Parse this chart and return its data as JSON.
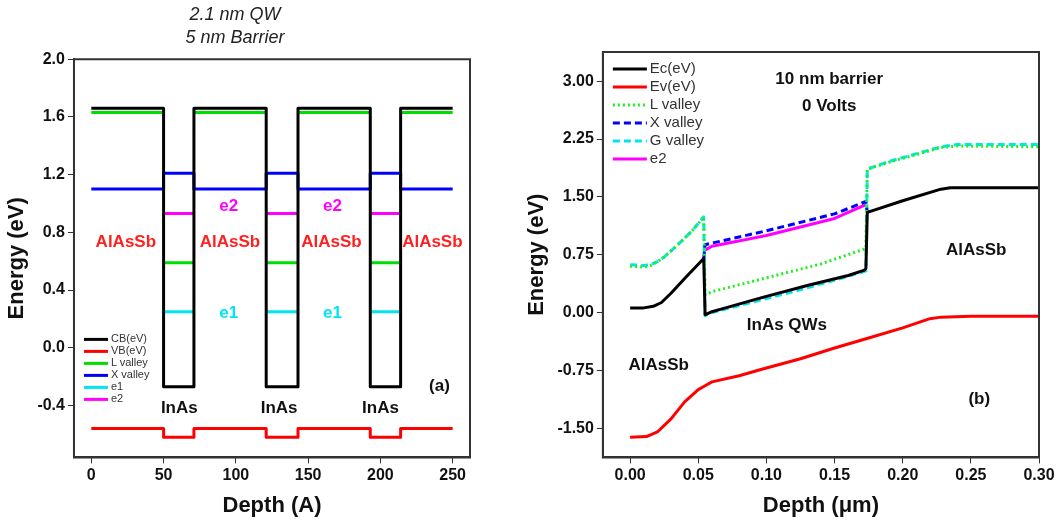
{
  "chart_data": [
    {
      "type": "line",
      "title": "2.1 nm QW",
      "subtitle": "5 nm Barrier",
      "xlabel": "Depth (A)",
      "ylabel": "Energy (eV)",
      "xlim": [
        -12,
        262
      ],
      "xticks": [
        0,
        50,
        100,
        150,
        200,
        250
      ],
      "ylim": [
        -0.76,
        2.0
      ],
      "yticks": [
        {
          "value": -0.4,
          "label": "-0.4"
        },
        {
          "value": 0,
          "label": "0.0"
        },
        0.4,
        0.8,
        1.2,
        1.6,
        {
          "value": 2,
          "label": "2.0"
        }
      ],
      "legend": "bottom left",
      "marker": "none",
      "line_style": "solid",
      "series": [
        {
          "name": "CB(eV)",
          "color": "#000000",
          "x": [
            0,
            50,
            50,
            71,
            71,
            121,
            121,
            143,
            143,
            193,
            193,
            214,
            214,
            250
          ],
          "values": [
            1.66,
            1.66,
            -0.27,
            -0.27,
            1.66,
            1.66,
            -0.27,
            -0.27,
            1.66,
            1.66,
            -0.27,
            -0.27,
            1.66,
            1.66
          ]
        },
        {
          "name": "VB(eV)",
          "color": "#ff0000",
          "x": [
            0,
            50,
            50,
            71,
            71,
            121,
            121,
            143,
            143,
            193,
            193,
            214,
            214,
            250
          ],
          "values": [
            -0.56,
            -0.56,
            -0.62,
            -0.62,
            -0.56,
            -0.56,
            -0.62,
            -0.62,
            -0.56,
            -0.56,
            -0.62,
            -0.62,
            -0.56,
            -0.56
          ]
        },
        {
          "name": "L valley",
          "color": "#00dd00",
          "x": [
            0,
            50
          ],
          "values": [
            1.63,
            1.63
          ]
        },
        {
          "color": "#00dd00",
          "x": [
            71,
            121
          ],
          "values": [
            1.63,
            1.63
          ]
        },
        {
          "color": "#00dd00",
          "x": [
            143,
            193
          ],
          "values": [
            1.63,
            1.63
          ]
        },
        {
          "color": "#00dd00",
          "x": [
            214,
            250
          ],
          "values": [
            1.63,
            1.63
          ]
        },
        {
          "name": "X valley",
          "color": "#0000ff",
          "x": [
            0,
            50,
            50,
            71,
            71,
            121,
            121,
            143,
            143,
            193,
            193,
            214,
            214,
            250
          ],
          "values": [
            1.1,
            1.1,
            1.21,
            1.21,
            1.1,
            1.1,
            1.21,
            1.21,
            1.1,
            1.1,
            1.21,
            1.21,
            1.1,
            1.1
          ]
        },
        {
          "name": "e1",
          "color": "#00e5ee",
          "x": [
            50,
            71
          ],
          "values": [
            0.25,
            0.25
          ]
        },
        {
          "color": "#00e5ee",
          "x": [
            121,
            143
          ],
          "values": [
            0.25,
            0.25
          ]
        },
        {
          "color": "#00e5ee",
          "x": [
            193,
            214
          ],
          "values": [
            0.25,
            0.25
          ]
        },
        {
          "name": "e2",
          "color": "#ff00ff",
          "x": [
            50,
            71
          ],
          "values": [
            0.93,
            0.93
          ]
        },
        {
          "color": "#ff00ff",
          "x": [
            121,
            143
          ],
          "values": [
            0.93,
            0.93
          ]
        },
        {
          "color": "#ff00ff",
          "x": [
            193,
            214
          ],
          "values": [
            0.93,
            0.93
          ]
        },
        {
          "color": "#00dd00",
          "x": [
            50,
            71
          ],
          "values": [
            0.59,
            0.59
          ]
        },
        {
          "color": "#00dd00",
          "x": [
            121,
            143
          ],
          "values": [
            0.59,
            0.59
          ]
        },
        {
          "color": "#00dd00",
          "x": [
            193,
            214
          ],
          "values": [
            0.59,
            0.59
          ]
        }
      ],
      "annotations": [
        "AlAsSb",
        "AlAsSb",
        "AlAsSb",
        "AlAsSb",
        "e2",
        "e2",
        "e1",
        "e1",
        "InAs",
        "InAs",
        "InAs",
        "(a)"
      ]
    },
    {
      "type": "line",
      "xlabel": "Depth (μm)",
      "ylabel": "Energy (eV)",
      "xlim": [
        -0.02,
        0.3
      ],
      "xticks": [
        {
          "value": 0,
          "label": "0.00"
        },
        {
          "value": 0.05,
          "label": "0.05"
        },
        {
          "value": 0.1,
          "label": "0.10"
        },
        {
          "value": 0.15,
          "label": "0.15"
        },
        {
          "value": 0.2,
          "label": "0.20"
        },
        {
          "value": 0.25,
          "label": "0.25"
        },
        {
          "value": 0.3,
          "label": "0.30"
        }
      ],
      "ylim": [
        -1.88,
        3.38
      ],
      "yticks": [
        {
          "value": -1.5,
          "label": "-1.50"
        },
        {
          "value": -0.75,
          "label": "-0.75"
        },
        {
          "value": 0,
          "label": "0.00"
        },
        {
          "value": 0.75,
          "label": "0.75"
        },
        {
          "value": 1.5,
          "label": "1.50"
        },
        {
          "value": 2.25,
          "label": "2.25"
        },
        {
          "value": 3,
          "label": "3.00"
        }
      ],
      "legend": "top left",
      "marker": "none",
      "series": [
        {
          "name": "Ec(eV)",
          "color": "#000000",
          "line_style": "solid",
          "x": [
            0,
            0.01,
            0.017,
            0.023,
            0.03,
            0.04,
            0.054,
            0.055,
            0.06,
            0.07,
            0.1,
            0.13,
            0.16,
            0.172,
            0.173,
            0.174,
            0.2,
            0.228,
            0.235,
            0.3
          ],
          "values": [
            0.06,
            0.06,
            0.08,
            0.13,
            0.25,
            0.44,
            0.7,
            -0.03,
            0.01,
            0.06,
            0.21,
            0.35,
            0.48,
            0.55,
            0.57,
            1.3,
            1.45,
            1.6,
            1.62,
            1.62
          ]
        },
        {
          "name": "Ev(eV)",
          "color": "#ff0000",
          "line_style": "solid",
          "x": [
            0,
            0.012,
            0.02,
            0.03,
            0.04,
            0.05,
            0.055,
            0.06,
            0.08,
            0.1,
            0.125,
            0.15,
            0.175,
            0.2,
            0.22,
            0.228,
            0.25,
            0.3
          ],
          "values": [
            -1.62,
            -1.61,
            -1.55,
            -1.38,
            -1.16,
            -1.0,
            -0.95,
            -0.9,
            -0.82,
            -0.72,
            -0.6,
            -0.46,
            -0.33,
            -0.2,
            -0.08,
            -0.06,
            -0.05,
            -0.05
          ]
        },
        {
          "name": "L valley",
          "color": "#22ee22",
          "line_style": "dotted",
          "x": [
            0,
            0.01,
            0.015,
            0.02,
            0.025,
            0.035,
            0.045,
            0.054,
            0.055,
            0.06,
            0.1,
            0.14,
            0.173,
            0.174,
            0.19,
            0.228,
            0.24,
            0.3
          ],
          "values": [
            0.6,
            0.59,
            0.61,
            0.66,
            0.72,
            0.88,
            1.05,
            1.24,
            0.23,
            0.27,
            0.45,
            0.63,
            0.83,
            1.86,
            1.95,
            2.14,
            2.16,
            2.15
          ]
        },
        {
          "name": "X valley",
          "color": "#0000ff",
          "line_style": "dashed",
          "x": [
            0.054,
            0.055,
            0.1,
            0.15,
            0.173,
            0.174
          ],
          "values": [
            0.7,
            0.88,
            1.06,
            1.28,
            1.44,
            1.3
          ]
        },
        {
          "name": "G valley",
          "color": "#00e5ee",
          "line_style": "dashed",
          "x": [
            0,
            0.01,
            0.015,
            0.02,
            0.025,
            0.035,
            0.045,
            0.054,
            0.055,
            0.06,
            0.1,
            0.13,
            0.16,
            0.173,
            0.174,
            0.19,
            0.228,
            0.24,
            0.3
          ],
          "values": [
            0.62,
            0.61,
            0.62,
            0.66,
            0.72,
            0.88,
            1.05,
            1.24,
            -0.04,
            0.0,
            0.18,
            0.32,
            0.47,
            0.54,
            1.86,
            1.96,
            2.15,
            2.18,
            2.18
          ]
        },
        {
          "name": "e2",
          "color": "#ff00ff",
          "line_style": "solid",
          "x": [
            0.055,
            0.06,
            0.1,
            0.15,
            0.173
          ],
          "values": [
            0.81,
            0.86,
            1.0,
            1.22,
            1.4
          ]
        }
      ],
      "annotations": [
        "10 nm barrier",
        "0 Volts",
        "AlAsSb",
        "InAs QWs",
        "AlAsSb",
        "(b)"
      ]
    }
  ]
}
